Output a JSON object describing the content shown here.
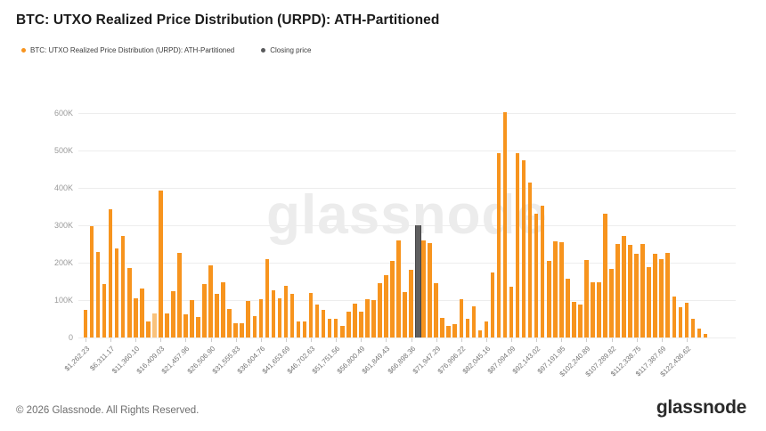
{
  "header": {
    "title": "BTC: UTXO Realized Price Distribution (URPD): ATH-Partitioned"
  },
  "legend": {
    "items": [
      {
        "label": "BTC: UTXO Realized Price Distribution (URPD): ATH-Partitioned",
        "color": "#F7941E"
      },
      {
        "label": "Closing price",
        "color": "#58595B"
      }
    ]
  },
  "chart_data": {
    "type": "bar",
    "title": "BTC: UTXO Realized Price Distribution (URPD): ATH-Partitioned",
    "xlabel": "",
    "ylabel": "",
    "grid": true,
    "legend_position": "top-left",
    "ylim": [
      0,
      620000
    ],
    "y_ticks": [
      "600K",
      "500K",
      "400K",
      "300K",
      "200K",
      "100K",
      "0"
    ],
    "y_tick_values": [
      600000,
      500000,
      400000,
      300000,
      200000,
      100000,
      0
    ],
    "x_tick_every": 4,
    "bin_width_usd": 1262.23,
    "x_tick_labels": [
      "$1,262.23",
      "$6,311.17",
      "$11,360.10",
      "$16,409.03",
      "$21,457.96",
      "$26,506.90",
      "$31,555.83",
      "$36,604.76",
      "$41,653.69",
      "$46,702.63",
      "$51,751.56",
      "$56,800.49",
      "$61,849.43",
      "$66,898.36",
      "$71,947.29",
      "$76,996.22",
      "$82,045.16",
      "$87,094.09",
      "$92,143.02",
      "$97,191.95",
      "$102,240.89",
      "$107,289.82",
      "$112,338.75",
      "$117,387.69",
      "$122,436.62"
    ],
    "series": [
      {
        "name": "BTC: UTXO Realized Price Distribution (URPD): ATH-Partitioned",
        "color": "#F7941E"
      },
      {
        "name": "Closing price",
        "color": "#58595B"
      }
    ],
    "values_btc": [
      75000,
      297000,
      229000,
      144000,
      344000,
      239000,
      271000,
      186000,
      104000,
      132000,
      44000,
      65000,
      393000,
      65000,
      124000,
      226000,
      63000,
      99000,
      55000,
      143000,
      194000,
      117000,
      148000,
      77000,
      37000,
      39000,
      97000,
      57000,
      103000,
      210000,
      126000,
      105000,
      137000,
      117000,
      42000,
      44000,
      118000,
      87000,
      73000,
      49000,
      51000,
      31000,
      70000,
      91000,
      70000,
      102000,
      99000,
      145000,
      167000,
      204000,
      260000,
      122000,
      182000,
      301000,
      260000,
      252000,
      146000,
      52000,
      31000,
      36000,
      102000,
      51000,
      83000,
      20000,
      43000,
      173000,
      494000,
      602000,
      135000,
      492000,
      474000,
      414000,
      332000,
      352000,
      205000,
      256000,
      255000,
      156000,
      95000,
      87000,
      206000,
      147000,
      148000,
      330000,
      184000,
      249000,
      271000,
      247000,
      223000,
      250000,
      187000,
      224000,
      209000,
      227000,
      109000,
      80000,
      93000,
      51000,
      25000,
      9000
    ],
    "light_bin_index": 11,
    "closing_price_bin_index": 53,
    "colors": {
      "bar": "#F7941E",
      "bar_light": "#F9C27C",
      "closing_bar": "#5f5f60",
      "gridline": "#ededed"
    }
  },
  "watermark": {
    "text": "glassnode"
  },
  "footer": {
    "copyright": "© 2026 Glassnode. All Rights Reserved.",
    "logo": "glassnode"
  }
}
